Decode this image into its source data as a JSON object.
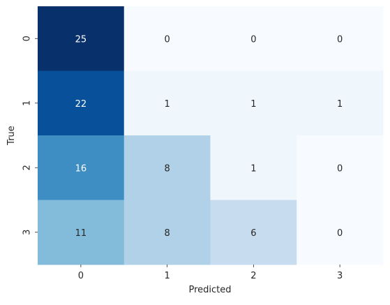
{
  "chart_data": {
    "type": "heatmap",
    "x_categories": [
      "0",
      "1",
      "2",
      "3"
    ],
    "y_categories": [
      "0",
      "1",
      "2",
      "3"
    ],
    "values": [
      [
        25,
        0,
        0,
        0
      ],
      [
        22,
        1,
        1,
        1
      ],
      [
        16,
        8,
        1,
        0
      ],
      [
        11,
        8,
        6,
        0
      ]
    ],
    "xlabel": "Predicted",
    "ylabel": "True",
    "colormap": "Blues",
    "colorbar": false,
    "annotations": true
  }
}
